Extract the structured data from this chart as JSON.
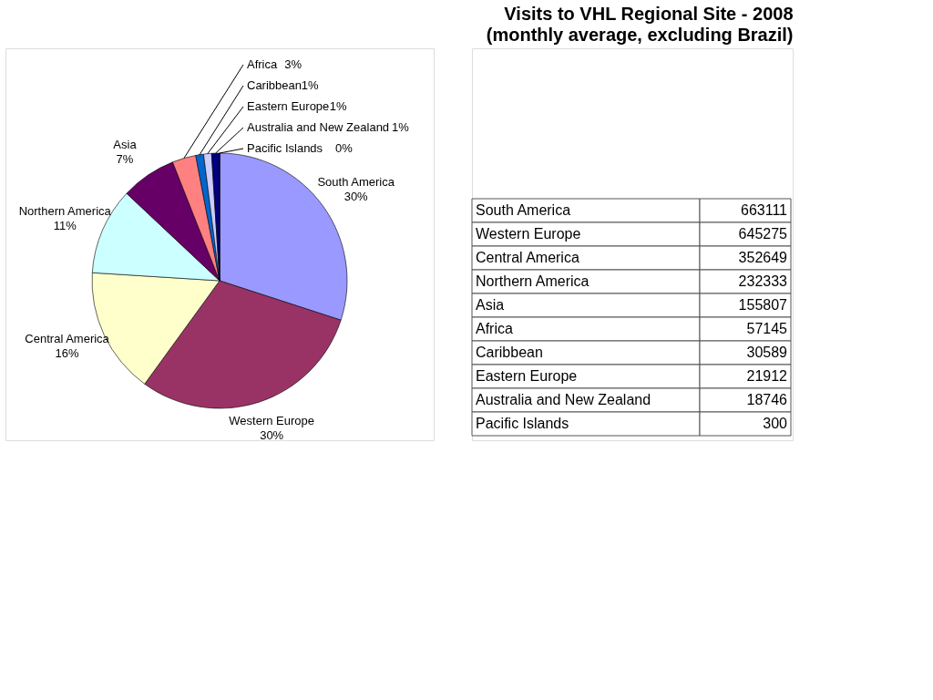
{
  "chart_data": [
    {
      "type": "pie",
      "title": "Visits to VHL Regional Site - 2008",
      "subtitle": "(monthly average, excluding Brazil)",
      "categories": [
        "South America",
        "Western Europe",
        "Central America",
        "Northern America",
        "Asia",
        "Africa",
        "Caribbean",
        "Eastern Europe",
        "Australia and New Zealand",
        "Pacific Islands"
      ],
      "values": [
        30,
        30,
        16,
        11,
        7,
        3,
        1,
        1,
        1,
        0
      ],
      "colors": [
        "#9999ff",
        "#993366",
        "#ffffcc",
        "#ccffff",
        "#660066",
        "#ff8080",
        "#0066cc",
        "#ccccff",
        "#000080",
        "#000080"
      ],
      "value_labels": [
        "30%",
        "30%",
        "16%",
        "11%",
        "7%",
        "3%",
        "1%",
        "1%",
        "1%",
        "0%"
      ]
    },
    {
      "type": "other",
      "categories": [
        "South America",
        "Western Europe",
        "Central America",
        "Northern America",
        "Asia",
        "Africa",
        "Caribbean",
        "Eastern Europe",
        "Australia and New Zealand",
        "Pacific Islands"
      ],
      "values": [
        663111,
        645275,
        352649,
        232333,
        155807,
        57145,
        30589,
        21912,
        18746,
        300
      ],
      "data_labels": true
    }
  ]
}
